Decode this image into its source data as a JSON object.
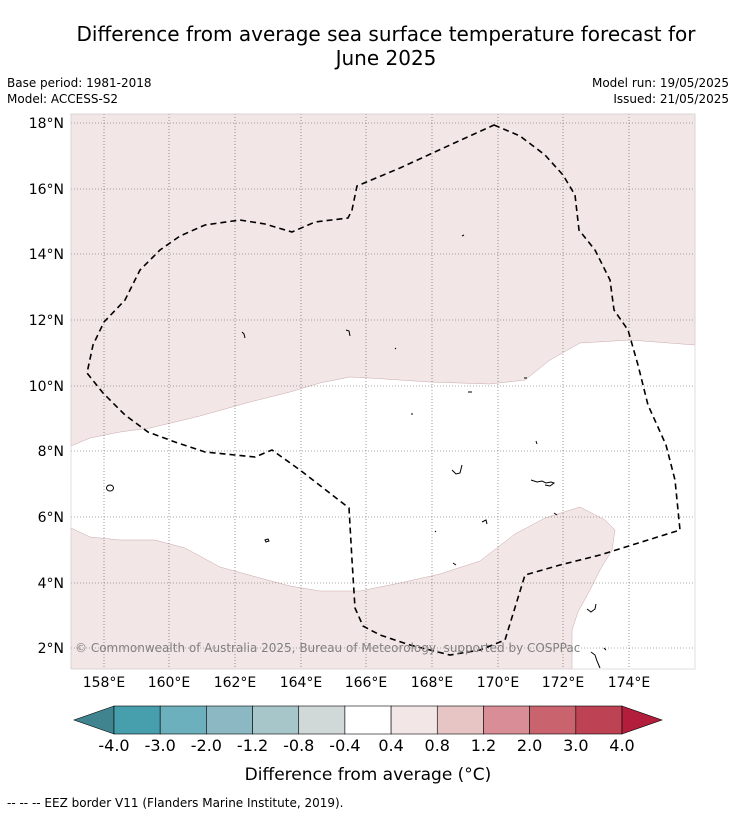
{
  "title_line1": "Difference from average sea surface temperature forecast for",
  "title_line2": "June 2025",
  "base_period": "Base period: 1981-2018",
  "model": "Model: ACCESS-S2",
  "model_run": "Model run: 19/05/2025",
  "issued": "Issued: 21/05/2025",
  "map": {
    "lat_labels": [
      "18°N",
      "16°N",
      "14°N",
      "12°N",
      "10°N",
      "8°N",
      "6°N",
      "4°N",
      "2°N"
    ],
    "lon_labels": [
      "158°E",
      "160°E",
      "162°E",
      "164°E",
      "166°E",
      "168°E",
      "170°E",
      "172°E",
      "174°E"
    ],
    "copyright": "© Commonwealth of Australia 2025, Bureau of Meteorology, supported by COSPPac",
    "colors": {
      "anomaly_low": "#f3e6e6",
      "neutral": "#ffffff",
      "grid": "#666666"
    }
  },
  "colorbar": {
    "tick_labels": [
      "-4.0",
      "-3.0",
      "-2.0",
      "-1.2",
      "-0.8",
      "-0.4",
      "0.4",
      "0.8",
      "1.2",
      "2.0",
      "3.0",
      "4.0"
    ],
    "colors": [
      "#3f848f",
      "#479fad",
      "#6cb0bd",
      "#8cb8c3",
      "#a7c6ca",
      "#d0d8d8",
      "#ffffff",
      "#f3e6e6",
      "#e8c5c5",
      "#d98d96",
      "#c9636e",
      "#bd4253",
      "#b21e3c"
    ],
    "title": "Difference from average (°C)"
  },
  "footer": "--  --  -- EEZ border V11 (Flanders Marine Institute, 2019)."
}
